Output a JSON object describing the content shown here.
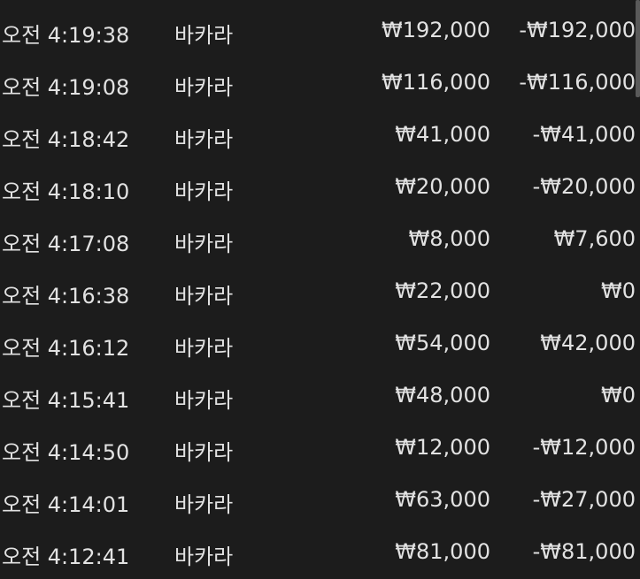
{
  "colors": {
    "background": "#1c1c1c",
    "text": "#e2e2e2",
    "scrollbar": "#5a5a5a"
  },
  "rows": [
    {
      "time": "오전 4:19:38",
      "game": "바카라",
      "bet": "₩192,000",
      "result": "-₩192,000"
    },
    {
      "time": "오전 4:19:08",
      "game": "바카라",
      "bet": "₩116,000",
      "result": "-₩116,000"
    },
    {
      "time": "오전 4:18:42",
      "game": "바카라",
      "bet": "₩41,000",
      "result": "-₩41,000"
    },
    {
      "time": "오전 4:18:10",
      "game": "바카라",
      "bet": "₩20,000",
      "result": "-₩20,000"
    },
    {
      "time": "오전 4:17:08",
      "game": "바카라",
      "bet": "₩8,000",
      "result": "₩7,600"
    },
    {
      "time": "오전 4:16:38",
      "game": "바카라",
      "bet": "₩22,000",
      "result": "₩0"
    },
    {
      "time": "오전 4:16:12",
      "game": "바카라",
      "bet": "₩54,000",
      "result": "₩42,000"
    },
    {
      "time": "오전 4:15:41",
      "game": "바카라",
      "bet": "₩48,000",
      "result": "₩0"
    },
    {
      "time": "오전 4:14:50",
      "game": "바카라",
      "bet": "₩12,000",
      "result": "-₩12,000"
    },
    {
      "time": "오전 4:14:01",
      "game": "바카라",
      "bet": "₩63,000",
      "result": "-₩27,000"
    },
    {
      "time": "오전 4:12:41",
      "game": "바카라",
      "bet": "₩81,000",
      "result": "-₩81,000"
    }
  ]
}
